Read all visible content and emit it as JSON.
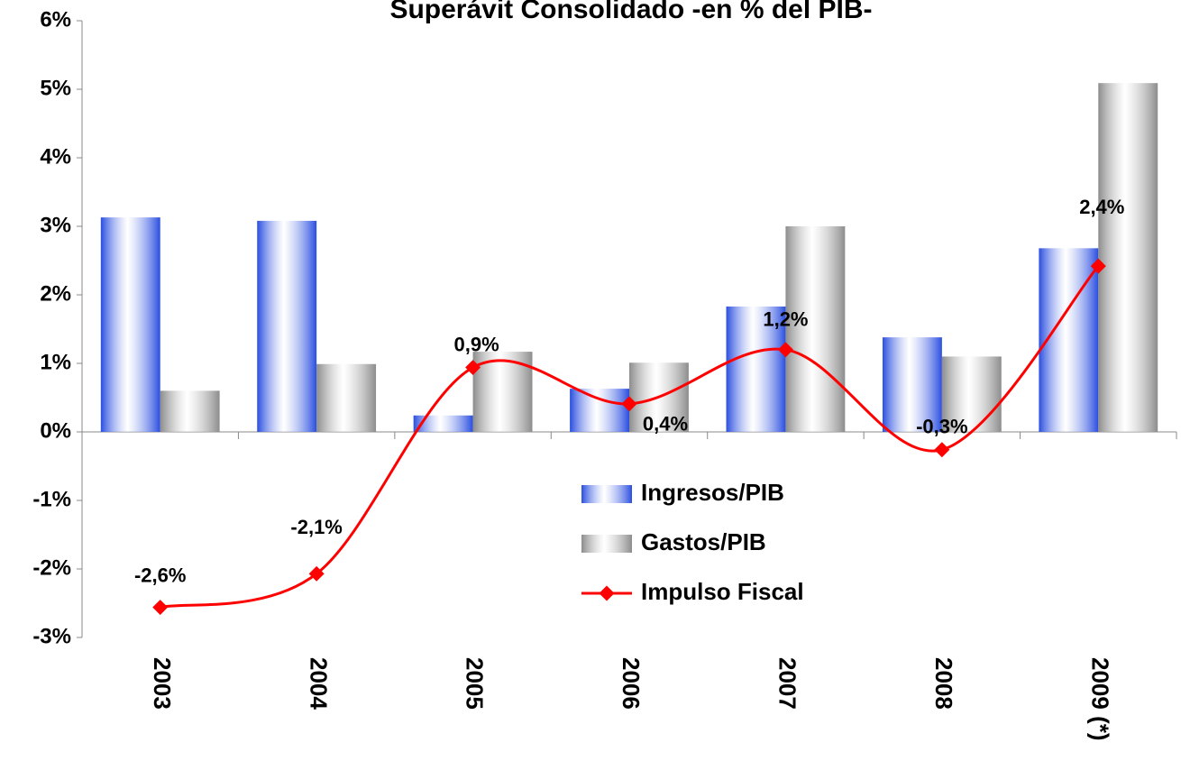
{
  "chart_data": {
    "type": "bar-line",
    "title": "Superávit Consolidado -en % del PIB-",
    "categories": [
      "2003",
      "2004",
      "2005",
      "2006",
      "2007",
      "2008",
      "2009 (*)"
    ],
    "series": [
      {
        "name": "Ingresos/PIB",
        "type": "bar",
        "color": "#2a4ee0",
        "values": [
          3.13,
          3.08,
          0.24,
          0.63,
          1.83,
          1.38,
          2.68
        ]
      },
      {
        "name": "Gastos/PIB",
        "type": "bar",
        "color": "#8c8c8c",
        "values": [
          0.6,
          0.99,
          1.17,
          1.01,
          3.0,
          1.1,
          5.09
        ]
      },
      {
        "name": "Impulso Fiscal",
        "type": "line",
        "color": "#ff0000",
        "values": [
          -2.56,
          -2.07,
          0.94,
          0.41,
          1.2,
          -0.26,
          2.42
        ],
        "value_labels": [
          "-2,6%",
          "-2,1%",
          "0,9%",
          "0,4%",
          "1,2%",
          "-0,3%",
          "2,4%"
        ]
      }
    ],
    "ylim": [
      -3,
      6
    ],
    "yticks": [
      {
        "value": -3,
        "label": "-3%"
      },
      {
        "value": -2,
        "label": "-2%"
      },
      {
        "value": -1,
        "label": "-1%"
      },
      {
        "value": 0,
        "label": "0%"
      },
      {
        "value": 1,
        "label": "1%"
      },
      {
        "value": 2,
        "label": "2%"
      },
      {
        "value": 3,
        "label": "3%"
      },
      {
        "value": 4,
        "label": "4%"
      },
      {
        "value": 5,
        "label": "5%"
      },
      {
        "value": 6,
        "label": "6%"
      }
    ],
    "grid": false
  }
}
